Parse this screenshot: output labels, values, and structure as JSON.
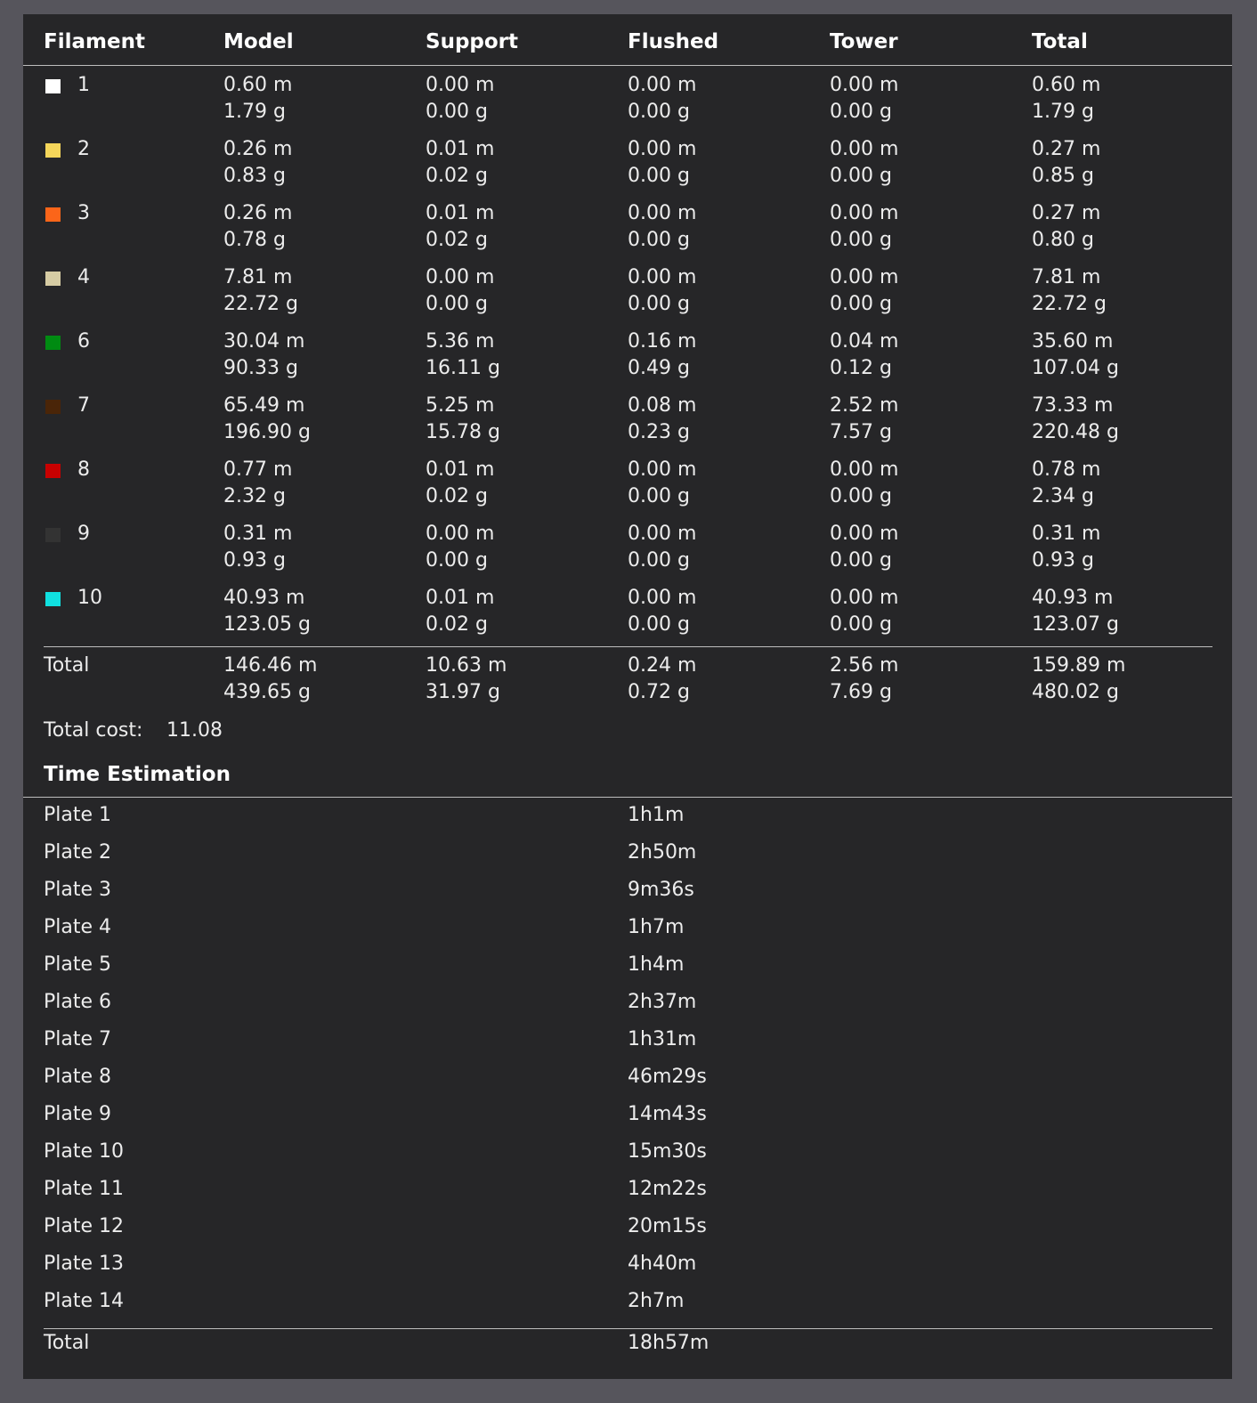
{
  "filament_table": {
    "headers": [
      "Filament",
      "Model",
      "Support",
      "Flushed",
      "Tower",
      "Total"
    ],
    "rows": [
      {
        "id": "1",
        "color": "#ffffff",
        "model": [
          "0.60 m",
          "1.79 g"
        ],
        "support": [
          "0.00 m",
          "0.00 g"
        ],
        "flushed": [
          "0.00 m",
          "0.00 g"
        ],
        "tower": [
          "0.00 m",
          "0.00 g"
        ],
        "total": [
          "0.60 m",
          "1.79 g"
        ]
      },
      {
        "id": "2",
        "color": "#f5d65a",
        "model": [
          "0.26 m",
          "0.83 g"
        ],
        "support": [
          "0.01 m",
          "0.02 g"
        ],
        "flushed": [
          "0.00 m",
          "0.00 g"
        ],
        "tower": [
          "0.00 m",
          "0.00 g"
        ],
        "total": [
          "0.27 m",
          "0.85 g"
        ]
      },
      {
        "id": "3",
        "color": "#fb6519",
        "model": [
          "0.26 m",
          "0.78 g"
        ],
        "support": [
          "0.01 m",
          "0.02 g"
        ],
        "flushed": [
          "0.00 m",
          "0.00 g"
        ],
        "tower": [
          "0.00 m",
          "0.00 g"
        ],
        "total": [
          "0.27 m",
          "0.80 g"
        ]
      },
      {
        "id": "4",
        "color": "#d6cca4",
        "model": [
          "7.81 m",
          "22.72 g"
        ],
        "support": [
          "0.00 m",
          "0.00 g"
        ],
        "flushed": [
          "0.00 m",
          "0.00 g"
        ],
        "tower": [
          "0.00 m",
          "0.00 g"
        ],
        "total": [
          "7.81 m",
          "22.72 g"
        ]
      },
      {
        "id": "6",
        "color": "#008b12",
        "model": [
          "30.04 m",
          "90.33 g"
        ],
        "support": [
          "5.36 m",
          "16.11 g"
        ],
        "flushed": [
          "0.16 m",
          "0.49 g"
        ],
        "tower": [
          "0.04 m",
          "0.12 g"
        ],
        "total": [
          "35.60 m",
          "107.04 g"
        ]
      },
      {
        "id": "7",
        "color": "#4a2508",
        "model": [
          "65.49 m",
          "196.90 g"
        ],
        "support": [
          "5.25 m",
          "15.78 g"
        ],
        "flushed": [
          "0.08 m",
          "0.23 g"
        ],
        "tower": [
          "2.52 m",
          "7.57 g"
        ],
        "total": [
          "73.33 m",
          "220.48 g"
        ]
      },
      {
        "id": "8",
        "color": "#c80000",
        "model": [
          "0.77 m",
          "2.32 g"
        ],
        "support": [
          "0.01 m",
          "0.02 g"
        ],
        "flushed": [
          "0.00 m",
          "0.00 g"
        ],
        "tower": [
          "0.00 m",
          "0.00 g"
        ],
        "total": [
          "0.78 m",
          "2.34 g"
        ]
      },
      {
        "id": "9",
        "color": "#333333",
        "model": [
          "0.31 m",
          "0.93 g"
        ],
        "support": [
          "0.00 m",
          "0.00 g"
        ],
        "flushed": [
          "0.00 m",
          "0.00 g"
        ],
        "tower": [
          "0.00 m",
          "0.00 g"
        ],
        "total": [
          "0.31 m",
          "0.93 g"
        ]
      },
      {
        "id": "10",
        "color": "#10e0e0",
        "model": [
          "40.93 m",
          "123.05 g"
        ],
        "support": [
          "0.01 m",
          "0.02 g"
        ],
        "flushed": [
          "0.00 m",
          "0.00 g"
        ],
        "tower": [
          "0.00 m",
          "0.00 g"
        ],
        "total": [
          "40.93 m",
          "123.07 g"
        ]
      }
    ],
    "total": {
      "label": "Total",
      "model": [
        "146.46 m",
        "439.65 g"
      ],
      "support": [
        "10.63 m",
        "31.97 g"
      ],
      "flushed": [
        "0.24 m",
        "0.72 g"
      ],
      "tower": [
        "2.56 m",
        "7.69 g"
      ],
      "total": [
        "159.89 m",
        "480.02 g"
      ]
    }
  },
  "cost": {
    "label": "Total cost:",
    "value": "11.08"
  },
  "time_estimation": {
    "title": "Time Estimation",
    "plates": [
      {
        "name": "Plate 1",
        "time": "1h1m"
      },
      {
        "name": "Plate 2",
        "time": "2h50m"
      },
      {
        "name": "Plate 3",
        "time": "9m36s"
      },
      {
        "name": "Plate 4",
        "time": "1h7m"
      },
      {
        "name": "Plate 5",
        "time": "1h4m"
      },
      {
        "name": "Plate 6",
        "time": "2h37m"
      },
      {
        "name": "Plate 7",
        "time": "1h31m"
      },
      {
        "name": "Plate 8",
        "time": "46m29s"
      },
      {
        "name": "Plate 9",
        "time": "14m43s"
      },
      {
        "name": "Plate 10",
        "time": "15m30s"
      },
      {
        "name": "Plate 11",
        "time": "12m22s"
      },
      {
        "name": "Plate 12",
        "time": "20m15s"
      },
      {
        "name": "Plate 13",
        "time": "4h40m"
      },
      {
        "name": "Plate 14",
        "time": "2h7m"
      }
    ],
    "total": {
      "label": "Total",
      "time": "18h57m"
    }
  }
}
